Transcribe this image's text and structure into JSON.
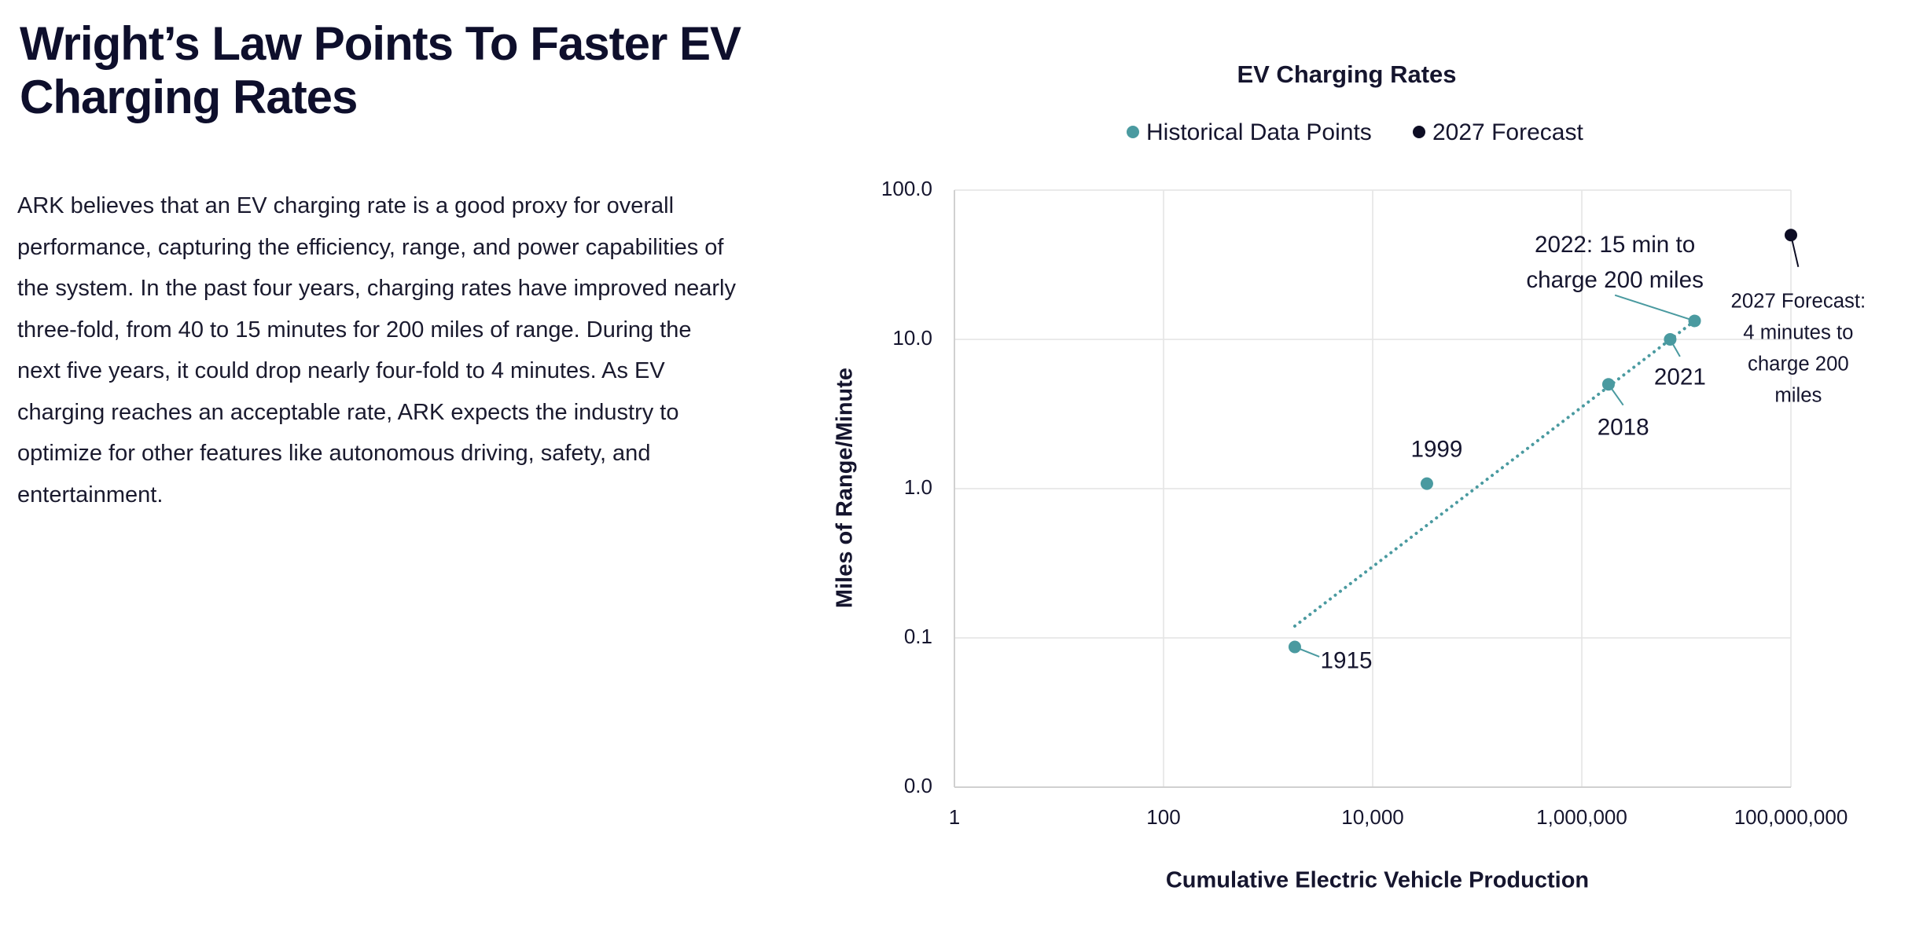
{
  "header": {
    "title": "Wright’s Law Points To Faster EV Charging Rates"
  },
  "body": {
    "paragraph": "ARK believes that an EV charging rate is a good proxy for overall performance, capturing the efficiency, range, and power capabilities of the system. In the past four years, charging rates have improved nearly three-fold, from 40 to 15 minutes for 200 miles of range. During the next five years, it could drop nearly four-fold to 4 minutes. As EV charging reaches an acceptable rate, ARK expects the industry to optimize for other features like autonomous driving, safety, and entertainment."
  },
  "chart_data": {
    "type": "scatter",
    "title": "EV Charging Rates",
    "xlabel": "Cumulative Electric Vehicle Production",
    "ylabel": "Miles of Range/Minute",
    "xscale": "log",
    "yscale": "log",
    "grid": true,
    "legend": "top",
    "xlim": [
      1,
      100000000
    ],
    "xticks": [
      1,
      100,
      {
        "value": 10000,
        "label": "10,000"
      },
      {
        "value": 1000000,
        "label": "1,000,000"
      },
      {
        "value": 100000000,
        "label": "100,000,000"
      }
    ],
    "ylim": [
      0.01,
      100
    ],
    "yticks": [
      {
        "value": 0.01,
        "label": "0.0"
      },
      {
        "value": 0.1,
        "label": "0.1"
      },
      {
        "value": 1,
        "label": "1.0"
      },
      {
        "value": 10,
        "label": "10.0"
      },
      {
        "value": 100,
        "label": "100.0"
      }
    ],
    "series": [
      {
        "name": "Historical Data Points",
        "color": "#4a9aa0",
        "x": [
          1800,
          33000,
          1800000,
          7000000,
          12000000
        ],
        "values": [
          0.087,
          1.08,
          5,
          10,
          13.3
        ],
        "labels": [
          "1915",
          "1999",
          "2018",
          "2021",
          "2022: 15 min to charge 200 miles"
        ]
      },
      {
        "name": "2027 Forecast",
        "color": "#0d0d24",
        "x": [
          100000000
        ],
        "values": [
          50
        ],
        "labels": [
          "2027 Forecast: 4 minutes to charge 200 miles"
        ]
      }
    ],
    "trendline": {
      "color": "#4a9aa0",
      "x": [
        1800,
        12000000
      ],
      "values": [
        0.12,
        13.3
      ]
    }
  }
}
